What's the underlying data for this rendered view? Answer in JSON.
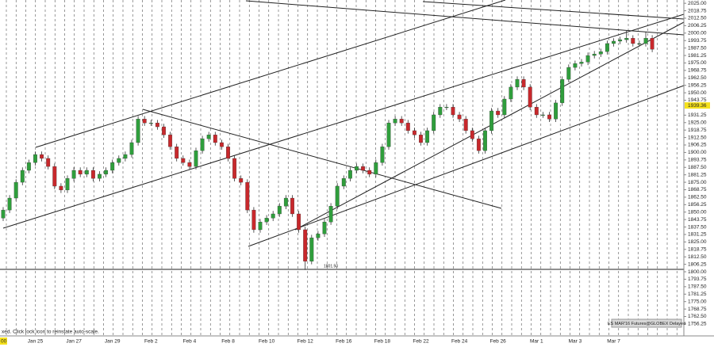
{
  "chart_data": {
    "type": "candlestick",
    "instrument_label": "ES MAR'16 Futures@GLOBEX Delayed",
    "status_text": "xed. Click lock icon to reinstate auto-scale.",
    "crosshair_time_label": "00",
    "marker_price": 1939.36,
    "low_annotation": "1801.50",
    "up_color": "#2f9e3c",
    "down_color": "#c8282c",
    "categories": [
      null,
      null,
      null,
      null,
      null,
      "Jan 25",
      null,
      null,
      null,
      null,
      null,
      "Jan 27",
      null,
      null,
      null,
      null,
      null,
      "Jan 29",
      null,
      null,
      null,
      null,
      null,
      "Feb 2",
      null,
      null,
      null,
      null,
      null,
      "Feb 4",
      null,
      null,
      null,
      null,
      null,
      "Feb 8",
      null,
      null,
      null,
      null,
      null,
      "Feb 10",
      null,
      null,
      null,
      null,
      null,
      "Feb 12",
      null,
      null,
      null,
      null,
      null,
      "Feb 16",
      null,
      null,
      null,
      null,
      null,
      "Feb 18",
      null,
      null,
      null,
      null,
      null,
      "Feb 22",
      null,
      null,
      null,
      null,
      null,
      "Feb 24",
      null,
      null,
      null,
      null,
      null,
      "Feb 26",
      null,
      null,
      null,
      null,
      null,
      "Mar 1",
      null,
      null,
      null,
      null,
      null,
      "Mar 3",
      null,
      null,
      null,
      null,
      null,
      "Mar 7",
      null,
      null,
      null,
      null,
      null,
      null
    ],
    "ohlc": [
      [
        1845,
        1854.25,
        1842.5,
        1851.75
      ],
      [
        1851.75,
        1864.25,
        1849.25,
        1861.75
      ],
      [
        1861.75,
        1877.5,
        1859.25,
        1875
      ],
      [
        1875,
        1887.5,
        1872.5,
        1885
      ],
      [
        1885,
        1894,
        1882.5,
        1891.5
      ],
      [
        1891.5,
        1900.75,
        1889,
        1898.25
      ],
      [
        1898.25,
        1900.75,
        1892.5,
        1895
      ],
      [
        1895,
        1897.5,
        1885.75,
        1888.25
      ],
      [
        1888.25,
        1890.75,
        1869.25,
        1871.75
      ],
      [
        1871.75,
        1874.25,
        1866,
        1868.5
      ],
      [
        1868.5,
        1880.75,
        1866,
        1878.25
      ],
      [
        1878.25,
        1887.5,
        1875.75,
        1885
      ],
      [
        1885,
        1887.5,
        1879.25,
        1881.75
      ],
      [
        1881.75,
        1887.5,
        1879.25,
        1885
      ],
      [
        1885,
        1887.5,
        1875.75,
        1878.25
      ],
      [
        1878.25,
        1884.25,
        1875.75,
        1881.75
      ],
      [
        1881.75,
        1887.5,
        1879.25,
        1885
      ],
      [
        1885,
        1894,
        1882.5,
        1891.5
      ],
      [
        1891.5,
        1897.5,
        1889,
        1895
      ],
      [
        1895,
        1900.75,
        1892.5,
        1898.25
      ],
      [
        1898.25,
        1910.75,
        1895.75,
        1908.25
      ],
      [
        1908.25,
        1930.5,
        1905.75,
        1928
      ],
      [
        1928,
        1930.5,
        1922.25,
        1924.75
      ],
      [
        1924.75,
        1927.25,
        1922.25,
        1924.75
      ],
      [
        1924.75,
        1927.25,
        1919,
        1921.5
      ],
      [
        1921.5,
        1924,
        1912.25,
        1914.75
      ],
      [
        1914.75,
        1917.25,
        1902.25,
        1904.75
      ],
      [
        1904.75,
        1907.25,
        1892.5,
        1895
      ],
      [
        1895,
        1897.5,
        1889,
        1891.5
      ],
      [
        1891.5,
        1894,
        1885.75,
        1888.25
      ],
      [
        1888.25,
        1904,
        1885.75,
        1901.5
      ],
      [
        1901.5,
        1914,
        1899,
        1911.5
      ],
      [
        1911.5,
        1917.25,
        1909,
        1914.75
      ],
      [
        1914.75,
        1917.25,
        1905.75,
        1908.25
      ],
      [
        1908.25,
        1910.75,
        1902.25,
        1904.75
      ],
      [
        1904.75,
        1907.25,
        1892.5,
        1895
      ],
      [
        1895,
        1897.5,
        1875.75,
        1878.25
      ],
      [
        1878.25,
        1880.75,
        1872.5,
        1875
      ],
      [
        1875,
        1877.5,
        1849.25,
        1851.75
      ],
      [
        1851.75,
        1854.25,
        1832.75,
        1835.25
      ],
      [
        1835.25,
        1844.25,
        1832.75,
        1841.75
      ],
      [
        1841.75,
        1847.5,
        1839.25,
        1845
      ],
      [
        1845,
        1851,
        1842.5,
        1848.5
      ],
      [
        1848.5,
        1857.5,
        1846,
        1855
      ],
      [
        1855,
        1864.25,
        1852.5,
        1861.75
      ],
      [
        1861.75,
        1864.25,
        1846,
        1848.5
      ],
      [
        1848.5,
        1851,
        1832.75,
        1835.25
      ],
      [
        1835.25,
        1837.75,
        1801.5,
        1808.75
      ],
      [
        1808.75,
        1831,
        1806.25,
        1828.5
      ],
      [
        1828.5,
        1834.25,
        1826,
        1831.75
      ],
      [
        1831.75,
        1844.25,
        1829.25,
        1841.75
      ],
      [
        1841.75,
        1857.5,
        1839.25,
        1855
      ],
      [
        1855,
        1874.25,
        1852.5,
        1871.75
      ],
      [
        1871.75,
        1880.75,
        1869.25,
        1878.25
      ],
      [
        1878.25,
        1887.5,
        1875.75,
        1885
      ],
      [
        1885,
        1890.75,
        1882.5,
        1888.25
      ],
      [
        1888.25,
        1890.75,
        1882.5,
        1885
      ],
      [
        1885,
        1887.5,
        1879.25,
        1881.75
      ],
      [
        1881.75,
        1894,
        1879.25,
        1891.5
      ],
      [
        1891.5,
        1907.25,
        1889,
        1904.75
      ],
      [
        1904.75,
        1927.25,
        1902.25,
        1924.75
      ],
      [
        1924.75,
        1930.5,
        1922.25,
        1928
      ],
      [
        1928,
        1930.5,
        1922.25,
        1924.75
      ],
      [
        1924.75,
        1927.25,
        1915.75,
        1918.25
      ],
      [
        1918.25,
        1920.75,
        1912.25,
        1914.75
      ],
      [
        1914.75,
        1917.25,
        1905.75,
        1908.25
      ],
      [
        1908.25,
        1920.75,
        1905.75,
        1918.25
      ],
      [
        1918.25,
        1934,
        1915.75,
        1931.5
      ],
      [
        1931.5,
        1940.5,
        1929,
        1938
      ],
      [
        1938,
        1940.5,
        1935.5,
        1938
      ],
      [
        1938,
        1940.5,
        1929,
        1931.5
      ],
      [
        1931.5,
        1934,
        1925.5,
        1928
      ],
      [
        1928,
        1930.5,
        1915.75,
        1918.25
      ],
      [
        1918.25,
        1920.75,
        1909,
        1911.5
      ],
      [
        1911.5,
        1914,
        1899,
        1901.5
      ],
      [
        1901.5,
        1920.75,
        1899,
        1918.25
      ],
      [
        1918.25,
        1937.25,
        1915.75,
        1934.75
      ],
      [
        1934.75,
        1937.25,
        1929,
        1931.5
      ],
      [
        1931.5,
        1947.25,
        1929,
        1944.75
      ],
      [
        1944.75,
        1957.25,
        1942.25,
        1954.75
      ],
      [
        1954.75,
        1963.75,
        1952.25,
        1961.25
      ],
      [
        1961.25,
        1963.75,
        1952.25,
        1954.75
      ],
      [
        1954.75,
        1957.25,
        1935.5,
        1938
      ],
      [
        1938,
        1940.5,
        1929,
        1931.5
      ],
      [
        1931.5,
        1934,
        1929,
        1931.5
      ],
      [
        1931.5,
        1934,
        1925.5,
        1928
      ],
      [
        1928,
        1944,
        1925.5,
        1941.5
      ],
      [
        1941.5,
        1963.75,
        1939,
        1961.25
      ],
      [
        1961.25,
        1973.75,
        1958.75,
        1971.25
      ],
      [
        1971.25,
        1977,
        1968.75,
        1974.5
      ],
      [
        1974.5,
        1978.25,
        1972,
        1975.75
      ],
      [
        1975.75,
        1983.75,
        1973.25,
        1981.25
      ],
      [
        1981.25,
        1985,
        1978.75,
        1982.5
      ],
      [
        1982.5,
        1987,
        1980,
        1984.5
      ],
      [
        1984.5,
        1993.75,
        1982,
        1991.25
      ],
      [
        1991.25,
        1995.75,
        1988.75,
        1993.25
      ],
      [
        1993.25,
        1997,
        1990.75,
        1994.5
      ],
      [
        1994.5,
        2002,
        1992,
        1995.75
      ],
      [
        1995.75,
        1998.25,
        1988.75,
        1991.25
      ],
      [
        1991.25,
        1993.75,
        1988.75,
        1991.25
      ],
      [
        1991.25,
        2001,
        1988.75,
        1995.75
      ],
      [
        1995.75,
        1998.25,
        1984,
        1986.5
      ]
    ],
    "ylim": [
      1746.25,
      2027.75
    ],
    "yticks": [
      {
        "value": 2025,
        "label": "2025.00"
      },
      {
        "value": 2018.75,
        "label": "2018.75"
      },
      {
        "value": 2012.5,
        "label": "2012.50"
      },
      {
        "value": 2006.25,
        "label": "2006.25"
      },
      {
        "value": 2000,
        "label": "2000.00"
      },
      {
        "value": 1993.75,
        "label": "1993.75"
      },
      {
        "value": 1987.5,
        "label": "1987.50"
      },
      {
        "value": 1981.25,
        "label": "1981.25"
      },
      {
        "value": 1975,
        "label": "1975.00"
      },
      {
        "value": 1968.75,
        "label": "1968.75"
      },
      {
        "value": 1962.5,
        "label": "1962.50"
      },
      {
        "value": 1956.25,
        "label": "1956.25"
      },
      {
        "value": 1950,
        "label": "1950.00"
      },
      {
        "value": 1943.75,
        "label": "1943.75"
      },
      {
        "value": 1931.25,
        "label": "1931.25"
      },
      {
        "value": 1925,
        "label": "1925.00"
      },
      {
        "value": 1918.75,
        "label": "1918.75"
      },
      {
        "value": 1912.5,
        "label": "1912.50"
      },
      {
        "value": 1906.25,
        "label": "1906.25"
      },
      {
        "value": 1900,
        "label": "1900.00"
      },
      {
        "value": 1893.75,
        "label": "1893.75"
      },
      {
        "value": 1887.5,
        "label": "1887.50"
      },
      {
        "value": 1881.25,
        "label": "1881.25"
      },
      {
        "value": 1875,
        "label": "1875.00"
      },
      {
        "value": 1868.75,
        "label": "1868.75"
      },
      {
        "value": 1862.5,
        "label": "1862.50"
      },
      {
        "value": 1856.25,
        "label": "1856.25"
      },
      {
        "value": 1850,
        "label": "1850.00"
      },
      {
        "value": 1843.75,
        "label": "1843.75"
      },
      {
        "value": 1837.5,
        "label": "1837.50"
      },
      {
        "value": 1831.25,
        "label": "1831.25"
      },
      {
        "value": 1825,
        "label": "1825.00"
      },
      {
        "value": 1818.75,
        "label": "1818.75"
      },
      {
        "value": 1812.5,
        "label": "1812.50"
      },
      {
        "value": 1806.25,
        "label": "1806.25"
      },
      {
        "value": 1800,
        "label": "1800.00"
      },
      {
        "value": 1793.75,
        "label": "1793.75"
      },
      {
        "value": 1787.5,
        "label": "1787.50"
      },
      {
        "value": 1781.25,
        "label": "1781.25"
      },
      {
        "value": 1775,
        "label": "1775.00"
      },
      {
        "value": 1768.75,
        "label": "1768.75"
      },
      {
        "value": 1762.5,
        "label": "1762.50"
      },
      {
        "value": 1756.25,
        "label": "1756.25"
      }
    ]
  }
}
